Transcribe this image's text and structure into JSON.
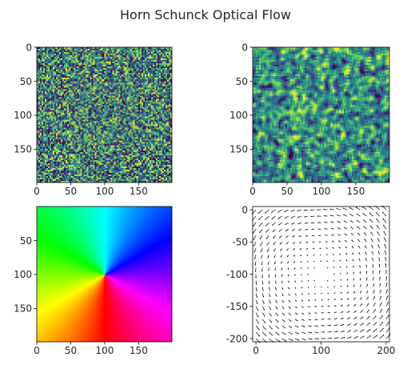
{
  "figure": {
    "title": "Horn Schunck Optical Flow"
  },
  "colors": {
    "viridis": [
      "#440154",
      "#3b528b",
      "#21918c",
      "#5ec962",
      "#fde725"
    ],
    "quiver": "#000000",
    "axis": "#000000"
  },
  "chart_data": [
    {
      "type": "heatmap",
      "content": "random noise image (viridis)",
      "x": {
        "ticks": [
          0,
          50,
          100,
          150
        ],
        "lim": [
          0,
          199
        ]
      },
      "y": {
        "ticks": [
          0,
          50,
          100,
          150
        ],
        "lim": [
          0,
          199
        ],
        "inverted": true
      },
      "colormap": "viridis",
      "grid": false
    },
    {
      "type": "heatmap",
      "content": "random noise image (viridis)",
      "x": {
        "ticks": [
          0,
          50,
          100,
          150
        ],
        "lim": [
          0,
          199
        ]
      },
      "y": {
        "ticks": [
          0,
          50,
          100,
          150
        ],
        "lim": [
          0,
          199
        ],
        "inverted": true
      },
      "colormap": "viridis",
      "grid": false
    },
    {
      "type": "heatmap",
      "content": "flow direction wheel (hue by angle around center)",
      "x": {
        "ticks": [
          0,
          50,
          100,
          150
        ],
        "lim": [
          0,
          199
        ]
      },
      "y": {
        "ticks": [
          50,
          100,
          150
        ],
        "lim": [
          0,
          199
        ],
        "inverted": true
      },
      "center": [
        100,
        100
      ],
      "colormap": "hsv",
      "grid": false
    },
    {
      "type": "scatter",
      "content": "quiver plot of rotational flow field",
      "x": {
        "ticks": [
          0,
          100,
          200
        ],
        "lim": [
          -5,
          205
        ]
      },
      "y": {
        "ticks": [
          0,
          -50,
          -100,
          -150,
          -200
        ],
        "lim": [
          -205,
          5
        ]
      },
      "center": [
        100,
        -100
      ],
      "grid_step": 10,
      "grid": false
    }
  ]
}
